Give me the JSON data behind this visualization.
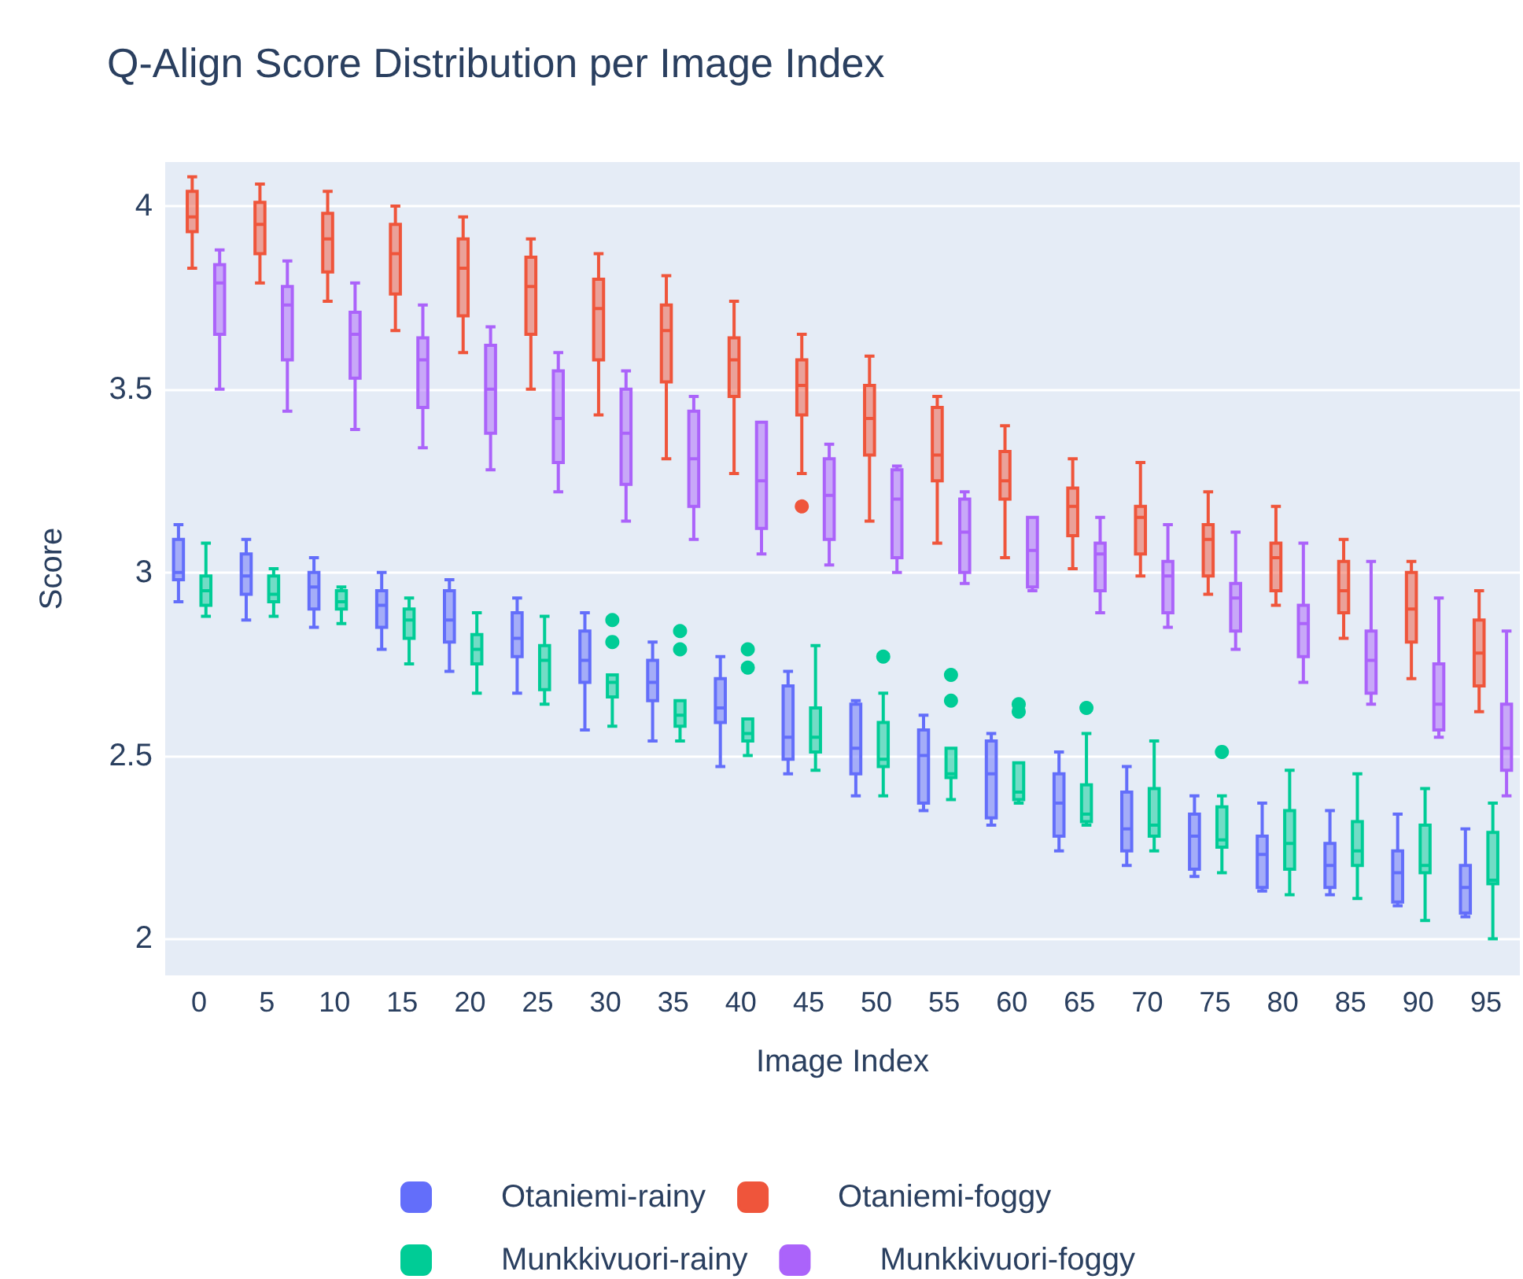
{
  "chart_data": {
    "type": "box",
    "title": "Q-Align Score Distribution per Image Index",
    "xlabel": "Image Index",
    "ylabel": "Score",
    "categories": [
      "0",
      "5",
      "10",
      "15",
      "20",
      "25",
      "30",
      "35",
      "40",
      "45",
      "50",
      "55",
      "60",
      "65",
      "70",
      "75",
      "80",
      "85",
      "90",
      "95"
    ],
    "ylim": [
      1.9,
      4.12
    ],
    "yticks": [
      2,
      2.5,
      3,
      3.5,
      4
    ],
    "grid": "y",
    "legend": "bottom",
    "series": [
      {
        "name": "Otaniemi-rainy",
        "color": "#636efa",
        "boxes": [
          {
            "low": 2.92,
            "q1": 2.98,
            "median": 3.0,
            "q3": 3.09,
            "high": 3.13
          },
          {
            "low": 2.87,
            "q1": 2.94,
            "median": 2.99,
            "q3": 3.05,
            "high": 3.09
          },
          {
            "low": 2.85,
            "q1": 2.9,
            "median": 2.96,
            "q3": 3.0,
            "high": 3.04
          },
          {
            "low": 2.79,
            "q1": 2.85,
            "median": 2.91,
            "q3": 2.95,
            "high": 3.0
          },
          {
            "low": 2.73,
            "q1": 2.81,
            "median": 2.87,
            "q3": 2.95,
            "high": 2.98
          },
          {
            "low": 2.67,
            "q1": 2.77,
            "median": 2.82,
            "q3": 2.89,
            "high": 2.93
          },
          {
            "low": 2.57,
            "q1": 2.7,
            "median": 2.76,
            "q3": 2.84,
            "high": 2.89
          },
          {
            "low": 2.54,
            "q1": 2.65,
            "median": 2.7,
            "q3": 2.76,
            "high": 2.81
          },
          {
            "low": 2.47,
            "q1": 2.59,
            "median": 2.63,
            "q3": 2.71,
            "high": 2.77
          },
          {
            "low": 2.45,
            "q1": 2.49,
            "median": 2.55,
            "q3": 2.69,
            "high": 2.73
          },
          {
            "low": 2.39,
            "q1": 2.45,
            "median": 2.52,
            "q3": 2.64,
            "high": 2.65
          },
          {
            "low": 2.35,
            "q1": 2.37,
            "median": 2.5,
            "q3": 2.57,
            "high": 2.61
          },
          {
            "low": 2.31,
            "q1": 2.33,
            "median": 2.45,
            "q3": 2.54,
            "high": 2.56
          },
          {
            "low": 2.24,
            "q1": 2.28,
            "median": 2.37,
            "q3": 2.45,
            "high": 2.51
          },
          {
            "low": 2.2,
            "q1": 2.24,
            "median": 2.3,
            "q3": 2.4,
            "high": 2.47
          },
          {
            "low": 2.17,
            "q1": 2.19,
            "median": 2.28,
            "q3": 2.34,
            "high": 2.39
          },
          {
            "low": 2.13,
            "q1": 2.14,
            "median": 2.23,
            "q3": 2.28,
            "high": 2.37
          },
          {
            "low": 2.12,
            "q1": 2.14,
            "median": 2.2,
            "q3": 2.26,
            "high": 2.35
          },
          {
            "low": 2.09,
            "q1": 2.1,
            "median": 2.18,
            "q3": 2.24,
            "high": 2.34
          },
          {
            "low": 2.06,
            "q1": 2.07,
            "median": 2.14,
            "q3": 2.2,
            "high": 2.3
          }
        ]
      },
      {
        "name": "Otaniemi-foggy",
        "color": "#ef553b",
        "boxes": [
          {
            "low": 3.83,
            "q1": 3.93,
            "median": 3.97,
            "q3": 4.04,
            "high": 4.08
          },
          {
            "low": 3.79,
            "q1": 3.87,
            "median": 3.95,
            "q3": 4.01,
            "high": 4.06
          },
          {
            "low": 3.74,
            "q1": 3.82,
            "median": 3.91,
            "q3": 3.98,
            "high": 4.04
          },
          {
            "low": 3.66,
            "q1": 3.76,
            "median": 3.87,
            "q3": 3.95,
            "high": 4.0
          },
          {
            "low": 3.6,
            "q1": 3.7,
            "median": 3.83,
            "q3": 3.91,
            "high": 3.97
          },
          {
            "low": 3.5,
            "q1": 3.65,
            "median": 3.78,
            "q3": 3.86,
            "high": 3.91
          },
          {
            "low": 3.43,
            "q1": 3.58,
            "median": 3.72,
            "q3": 3.8,
            "high": 3.87
          },
          {
            "low": 3.31,
            "q1": 3.52,
            "median": 3.66,
            "q3": 3.73,
            "high": 3.81
          },
          {
            "low": 3.27,
            "q1": 3.48,
            "median": 3.58,
            "q3": 3.64,
            "high": 3.74
          },
          {
            "low": 3.27,
            "q1": 3.43,
            "median": 3.51,
            "q3": 3.58,
            "high": 3.65,
            "outliers": [
              3.18
            ]
          },
          {
            "low": 3.14,
            "q1": 3.32,
            "median": 3.42,
            "q3": 3.51,
            "high": 3.59
          },
          {
            "low": 3.08,
            "q1": 3.25,
            "median": 3.32,
            "q3": 3.45,
            "high": 3.48
          },
          {
            "low": 3.04,
            "q1": 3.2,
            "median": 3.25,
            "q3": 3.33,
            "high": 3.4
          },
          {
            "low": 3.01,
            "q1": 3.1,
            "median": 3.18,
            "q3": 3.23,
            "high": 3.31
          },
          {
            "low": 2.99,
            "q1": 3.05,
            "median": 3.15,
            "q3": 3.18,
            "high": 3.3
          },
          {
            "low": 2.94,
            "q1": 2.99,
            "median": 3.09,
            "q3": 3.13,
            "high": 3.22
          },
          {
            "low": 2.91,
            "q1": 2.95,
            "median": 3.04,
            "q3": 3.08,
            "high": 3.18
          },
          {
            "low": 2.82,
            "q1": 2.89,
            "median": 2.95,
            "q3": 3.03,
            "high": 3.09
          },
          {
            "low": 2.71,
            "q1": 2.81,
            "median": 2.9,
            "q3": 3.0,
            "high": 3.03
          },
          {
            "low": 2.62,
            "q1": 2.69,
            "median": 2.78,
            "q3": 2.87,
            "high": 2.95
          }
        ]
      },
      {
        "name": "Munkkivuori-rainy",
        "color": "#00cc96",
        "boxes": [
          {
            "low": 2.88,
            "q1": 2.91,
            "median": 2.95,
            "q3": 2.99,
            "high": 3.08
          },
          {
            "low": 2.88,
            "q1": 2.92,
            "median": 2.94,
            "q3": 2.99,
            "high": 3.01
          },
          {
            "low": 2.86,
            "q1": 2.9,
            "median": 2.92,
            "q3": 2.95,
            "high": 2.96
          },
          {
            "low": 2.75,
            "q1": 2.82,
            "median": 2.87,
            "q3": 2.9,
            "high": 2.93
          },
          {
            "low": 2.67,
            "q1": 2.75,
            "median": 2.79,
            "q3": 2.83,
            "high": 2.89
          },
          {
            "low": 2.64,
            "q1": 2.68,
            "median": 2.76,
            "q3": 2.8,
            "high": 2.88
          },
          {
            "low": 2.58,
            "q1": 2.66,
            "median": 2.7,
            "q3": 2.72,
            "high": 2.72,
            "outliers": [
              2.87,
              2.81
            ]
          },
          {
            "low": 2.54,
            "q1": 2.58,
            "median": 2.61,
            "q3": 2.65,
            "high": 2.65,
            "outliers": [
              2.84,
              2.79
            ]
          },
          {
            "low": 2.5,
            "q1": 2.54,
            "median": 2.56,
            "q3": 2.6,
            "high": 2.6,
            "outliers": [
              2.79,
              2.74
            ]
          },
          {
            "low": 2.46,
            "q1": 2.51,
            "median": 2.55,
            "q3": 2.63,
            "high": 2.8
          },
          {
            "low": 2.39,
            "q1": 2.47,
            "median": 2.49,
            "q3": 2.59,
            "high": 2.67,
            "outliers": [
              2.77
            ]
          },
          {
            "low": 2.38,
            "q1": 2.44,
            "median": 2.45,
            "q3": 2.52,
            "high": 2.52,
            "outliers": [
              2.72,
              2.65
            ]
          },
          {
            "low": 2.37,
            "q1": 2.38,
            "median": 2.4,
            "q3": 2.48,
            "high": 2.48,
            "outliers": [
              2.64,
              2.62
            ]
          },
          {
            "low": 2.31,
            "q1": 2.32,
            "median": 2.34,
            "q3": 2.42,
            "high": 2.56,
            "outliers": [
              2.63
            ]
          },
          {
            "low": 2.24,
            "q1": 2.28,
            "median": 2.31,
            "q3": 2.41,
            "high": 2.54
          },
          {
            "low": 2.18,
            "q1": 2.25,
            "median": 2.27,
            "q3": 2.36,
            "high": 2.39,
            "outliers": [
              2.51
            ]
          },
          {
            "low": 2.12,
            "q1": 2.19,
            "median": 2.26,
            "q3": 2.35,
            "high": 2.46
          },
          {
            "low": 2.11,
            "q1": 2.2,
            "median": 2.24,
            "q3": 2.32,
            "high": 2.45
          },
          {
            "low": 2.05,
            "q1": 2.18,
            "median": 2.2,
            "q3": 2.31,
            "high": 2.41
          },
          {
            "low": 2.0,
            "q1": 2.15,
            "median": 2.16,
            "q3": 2.29,
            "high": 2.37
          }
        ]
      },
      {
        "name": "Munkkivuori-foggy",
        "color": "#ab63fa",
        "boxes": [
          {
            "low": 3.5,
            "q1": 3.65,
            "median": 3.79,
            "q3": 3.84,
            "high": 3.88
          },
          {
            "low": 3.44,
            "q1": 3.58,
            "median": 3.73,
            "q3": 3.78,
            "high": 3.85
          },
          {
            "low": 3.39,
            "q1": 3.53,
            "median": 3.65,
            "q3": 3.71,
            "high": 3.79
          },
          {
            "low": 3.34,
            "q1": 3.45,
            "median": 3.58,
            "q3": 3.64,
            "high": 3.73
          },
          {
            "low": 3.28,
            "q1": 3.38,
            "median": 3.5,
            "q3": 3.62,
            "high": 3.67
          },
          {
            "low": 3.22,
            "q1": 3.3,
            "median": 3.42,
            "q3": 3.55,
            "high": 3.6
          },
          {
            "low": 3.14,
            "q1": 3.24,
            "median": 3.38,
            "q3": 3.5,
            "high": 3.55
          },
          {
            "low": 3.09,
            "q1": 3.18,
            "median": 3.31,
            "q3": 3.44,
            "high": 3.48
          },
          {
            "low": 3.05,
            "q1": 3.12,
            "median": 3.25,
            "q3": 3.41,
            "high": 3.41
          },
          {
            "low": 3.02,
            "q1": 3.09,
            "median": 3.21,
            "q3": 3.31,
            "high": 3.35
          },
          {
            "low": 3.0,
            "q1": 3.04,
            "median": 3.2,
            "q3": 3.28,
            "high": 3.29
          },
          {
            "low": 2.97,
            "q1": 3.0,
            "median": 3.11,
            "q3": 3.2,
            "high": 3.22
          },
          {
            "low": 2.95,
            "q1": 2.96,
            "median": 3.06,
            "q3": 3.15,
            "high": 3.15
          },
          {
            "low": 2.89,
            "q1": 2.95,
            "median": 3.05,
            "q3": 3.08,
            "high": 3.15
          },
          {
            "low": 2.85,
            "q1": 2.89,
            "median": 2.99,
            "q3": 3.03,
            "high": 3.13
          },
          {
            "low": 2.79,
            "q1": 2.84,
            "median": 2.93,
            "q3": 2.97,
            "high": 3.11
          },
          {
            "low": 2.7,
            "q1": 2.77,
            "median": 2.86,
            "q3": 2.91,
            "high": 3.08
          },
          {
            "low": 2.64,
            "q1": 2.67,
            "median": 2.76,
            "q3": 2.84,
            "high": 3.03
          },
          {
            "low": 2.55,
            "q1": 2.57,
            "median": 2.64,
            "q3": 2.75,
            "high": 2.93
          },
          {
            "low": 2.39,
            "q1": 2.46,
            "median": 2.52,
            "q3": 2.64,
            "high": 2.84
          }
        ]
      }
    ]
  }
}
